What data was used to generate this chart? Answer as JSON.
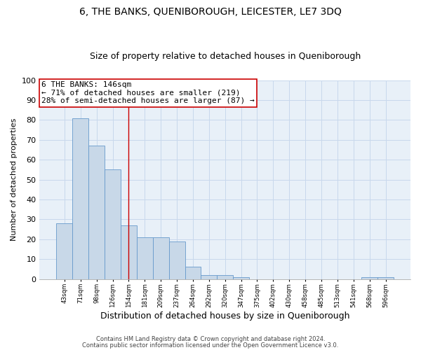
{
  "title": "6, THE BANKS, QUENIBOROUGH, LEICESTER, LE7 3DQ",
  "subtitle": "Size of property relative to detached houses in Queniborough",
  "xlabel": "Distribution of detached houses by size in Queniborough",
  "ylabel": "Number of detached properties",
  "bin_labels": [
    "43sqm",
    "71sqm",
    "98sqm",
    "126sqm",
    "154sqm",
    "181sqm",
    "209sqm",
    "237sqm",
    "264sqm",
    "292sqm",
    "320sqm",
    "347sqm",
    "375sqm",
    "402sqm",
    "430sqm",
    "458sqm",
    "485sqm",
    "513sqm",
    "541sqm",
    "568sqm",
    "596sqm"
  ],
  "bar_values": [
    28,
    81,
    67,
    55,
    27,
    21,
    21,
    19,
    6,
    2,
    2,
    1,
    0,
    0,
    0,
    0,
    0,
    0,
    0,
    1,
    1
  ],
  "bar_color": "#c8d8e8",
  "bar_edge_color": "#6699cc",
  "red_line_index": 4.0,
  "annotation_line1": "6 THE BANKS: 146sqm",
  "annotation_line2": "← 71% of detached houses are smaller (219)",
  "annotation_line3": "28% of semi-detached houses are larger (87) →",
  "annotation_box_color": "white",
  "annotation_box_edge_color": "#cc0000",
  "ylim": [
    0,
    100
  ],
  "yticks": [
    0,
    10,
    20,
    30,
    40,
    50,
    60,
    70,
    80,
    90,
    100
  ],
  "grid_color": "#c8d8ec",
  "footer_line1": "Contains HM Land Registry data © Crown copyright and database right 2024.",
  "footer_line2": "Contains public sector information licensed under the Open Government Licence v3.0.",
  "background_color": "#e8f0f8",
  "title_fontsize": 10,
  "subtitle_fontsize": 9,
  "annotation_fontsize": 8
}
